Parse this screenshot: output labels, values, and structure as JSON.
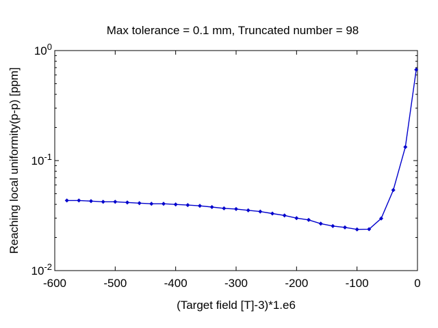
{
  "chart_data": {
    "type": "line",
    "title": "Max tolerance = 0.1 mm, Truncated number = 98",
    "xlabel": "(Target field [T]-3)*1.e6",
    "ylabel": "Reaching local uniformity(p-p) [ppm]",
    "xlim": [
      -600,
      0
    ],
    "ylim": [
      0.01,
      1
    ],
    "yscale": "log",
    "grid": false,
    "x_ticks": [
      {
        "value": -600,
        "label": "-600"
      },
      {
        "value": -500,
        "label": "-500"
      },
      {
        "value": -400,
        "label": "-400"
      },
      {
        "value": -300,
        "label": "-300"
      },
      {
        "value": -200,
        "label": "-200"
      },
      {
        "value": -100,
        "label": "-100"
      },
      {
        "value": 0,
        "label": "0"
      }
    ],
    "y_ticks": [
      {
        "value": 0.01,
        "base": "10",
        "exp": "-2"
      },
      {
        "value": 0.1,
        "base": "10",
        "exp": "-1"
      },
      {
        "value": 1,
        "base": "10",
        "exp": "0"
      }
    ],
    "series": [
      {
        "color": "#0000cc",
        "marker": "diamond",
        "x": [
          -580,
          -560,
          -540,
          -520,
          -500,
          -480,
          -460,
          -440,
          -420,
          -400,
          -380,
          -360,
          -340,
          -320,
          -300,
          -280,
          -260,
          -240,
          -220,
          -200,
          -180,
          -160,
          -140,
          -120,
          -100,
          -80,
          -60,
          -40,
          -20,
          -2
        ],
        "y": [
          0.0434,
          0.0434,
          0.0428,
          0.0422,
          0.0422,
          0.0416,
          0.041,
          0.0405,
          0.0405,
          0.0399,
          0.0394,
          0.0388,
          0.0378,
          0.0368,
          0.0363,
          0.0353,
          0.0344,
          0.033,
          0.0317,
          0.03,
          0.0289,
          0.0267,
          0.0254,
          0.0247,
          0.0237,
          0.0238,
          0.0298,
          0.054,
          0.133,
          0.67
        ]
      }
    ]
  }
}
